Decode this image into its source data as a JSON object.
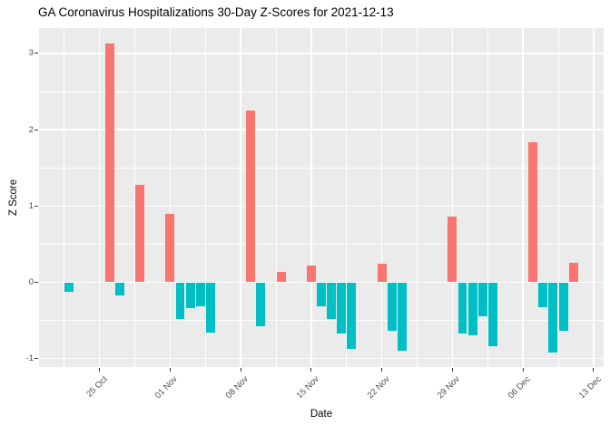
{
  "chart_data": {
    "type": "bar",
    "title": "GA Coronavirus Hospitalizations 30-Day Z-Scores for 2021-12-13",
    "xlabel": "Date",
    "ylabel": "Z Score",
    "legend": "none",
    "grid": "white major and minor gridlines on gray panel",
    "xlim": [
      "2021-10-19",
      "2021-12-14"
    ],
    "ylim": [
      -1.11,
      3.33
    ],
    "bar_width_days": 0.9,
    "x_ticks": [
      {
        "date": "2021-10-25",
        "label": "25 Oct"
      },
      {
        "date": "2021-11-01",
        "label": "01 Nov"
      },
      {
        "date": "2021-11-08",
        "label": "08 Nov"
      },
      {
        "date": "2021-11-15",
        "label": "15 Nov"
      },
      {
        "date": "2021-11-22",
        "label": "22 Nov"
      },
      {
        "date": "2021-11-29",
        "label": "29 Nov"
      },
      {
        "date": "2021-12-06",
        "label": "06 Dec"
      },
      {
        "date": "2021-12-13",
        "label": "13 Dec"
      }
    ],
    "y_ticks": [
      {
        "value": -1,
        "label": "-1"
      },
      {
        "value": 0,
        "label": "0"
      },
      {
        "value": 1,
        "label": "1"
      },
      {
        "value": 2,
        "label": "2"
      },
      {
        "value": 3,
        "label": "3"
      }
    ],
    "points": [
      {
        "date": "2021-10-22",
        "z": -0.13
      },
      {
        "date": "2021-10-26",
        "z": 3.13
      },
      {
        "date": "2021-10-27",
        "z": -0.17
      },
      {
        "date": "2021-10-29",
        "z": 1.28
      },
      {
        "date": "2021-11-01",
        "z": 0.9
      },
      {
        "date": "2021-11-02",
        "z": -0.48
      },
      {
        "date": "2021-11-03",
        "z": -0.34
      },
      {
        "date": "2021-11-04",
        "z": -0.31
      },
      {
        "date": "2021-11-05",
        "z": -0.66
      },
      {
        "date": "2021-11-09",
        "z": 2.25
      },
      {
        "date": "2021-11-10",
        "z": -0.58
      },
      {
        "date": "2021-11-12",
        "z": 0.14
      },
      {
        "date": "2021-11-15",
        "z": 0.22
      },
      {
        "date": "2021-11-16",
        "z": -0.31
      },
      {
        "date": "2021-11-17",
        "z": -0.48
      },
      {
        "date": "2021-11-18",
        "z": -0.67
      },
      {
        "date": "2021-11-19",
        "z": -0.87
      },
      {
        "date": "2021-11-22",
        "z": 0.24
      },
      {
        "date": "2021-11-23",
        "z": -0.64
      },
      {
        "date": "2021-11-24",
        "z": -0.9
      },
      {
        "date": "2021-11-29",
        "z": 0.86
      },
      {
        "date": "2021-11-30",
        "z": -0.67
      },
      {
        "date": "2021-12-01",
        "z": -0.7
      },
      {
        "date": "2021-12-02",
        "z": -0.45
      },
      {
        "date": "2021-12-03",
        "z": -0.84
      },
      {
        "date": "2021-12-07",
        "z": 1.83
      },
      {
        "date": "2021-12-08",
        "z": -0.33
      },
      {
        "date": "2021-12-09",
        "z": -0.92
      },
      {
        "date": "2021-12-10",
        "z": -0.64
      },
      {
        "date": "2021-12-11",
        "z": 0.26
      }
    ],
    "colors": {
      "positive": "#F8766D",
      "negative": "#00BFC4",
      "panel_bg": "#EBEBEB",
      "gridline": "#FFFFFF",
      "tick_mark": "#333333",
      "tick_text": "#4D4D4D",
      "title_text": "#000000"
    }
  }
}
